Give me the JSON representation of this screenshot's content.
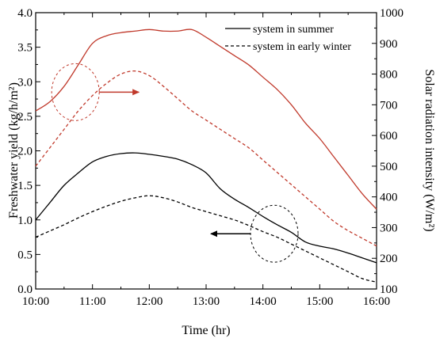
{
  "chart_data": {
    "type": "line",
    "x_ticks": [
      "10:00",
      "11:00",
      "12:00",
      "13:00",
      "14:00",
      "15:00",
      "16:00"
    ],
    "xlabel": "Time (hr)",
    "ylabel_left": "Freshwater yield (kg/h/m²)",
    "ylabel_right": "Solar radiation intensity (W/m²)",
    "y_left_lim": [
      0.0,
      4.0
    ],
    "y_left_ticks": [
      "0.0",
      "0.5",
      "1.0",
      "1.5",
      "2.0",
      "2.5",
      "3.0",
      "3.5",
      "4.0"
    ],
    "y_right_lim": [
      100,
      1000
    ],
    "y_right_ticks": [
      "100",
      "200",
      "300",
      "400",
      "500",
      "600",
      "700",
      "800",
      "900",
      "1000"
    ],
    "legend": [
      {
        "label": "system in summer",
        "style": "solid"
      },
      {
        "label": "system in early winter",
        "style": "dashed"
      }
    ],
    "colors": {
      "freshwater": "#000000",
      "radiation": "#c0392b"
    },
    "series": [
      {
        "name": "system in summer",
        "axis": "left",
        "style": "solid",
        "color": "#000000",
        "x": [
          10.0,
          10.25,
          10.5,
          10.75,
          11.0,
          11.25,
          11.5,
          11.75,
          12.0,
          12.25,
          12.5,
          12.75,
          13.0,
          13.25,
          13.5,
          13.75,
          14.0,
          14.25,
          14.5,
          14.75,
          15.0,
          15.25,
          15.5,
          15.75,
          16.0
        ],
        "y": [
          1.0,
          1.25,
          1.5,
          1.68,
          1.84,
          1.92,
          1.96,
          1.97,
          1.95,
          1.92,
          1.88,
          1.8,
          1.68,
          1.45,
          1.3,
          1.18,
          1.05,
          0.93,
          0.82,
          0.68,
          0.62,
          0.58,
          0.52,
          0.45,
          0.38
        ]
      },
      {
        "name": "system in early winter",
        "axis": "left",
        "style": "dashed",
        "color": "#000000",
        "x": [
          10.0,
          10.25,
          10.5,
          10.75,
          11.0,
          11.25,
          11.5,
          11.75,
          12.0,
          12.25,
          12.5,
          12.75,
          13.0,
          13.25,
          13.5,
          13.75,
          14.0,
          14.25,
          14.5,
          14.75,
          15.0,
          15.25,
          15.5,
          15.75,
          16.0
        ],
        "y": [
          0.75,
          0.84,
          0.93,
          1.03,
          1.12,
          1.2,
          1.27,
          1.32,
          1.35,
          1.32,
          1.26,
          1.18,
          1.12,
          1.06,
          1.0,
          0.92,
          0.83,
          0.75,
          0.65,
          0.55,
          0.45,
          0.35,
          0.25,
          0.15,
          0.1
        ]
      },
      {
        "name": "solar radiation, summer",
        "axis": "right",
        "style": "solid",
        "color": "#c0392b",
        "x": [
          10.0,
          10.25,
          10.5,
          10.75,
          11.0,
          11.25,
          11.5,
          11.75,
          12.0,
          12.25,
          12.5,
          12.75,
          13.0,
          13.25,
          13.5,
          13.75,
          14.0,
          14.25,
          14.5,
          14.75,
          15.0,
          15.25,
          15.5,
          15.75,
          16.0
        ],
        "y": [
          680,
          710,
          760,
          830,
          900,
          925,
          935,
          940,
          945,
          940,
          940,
          945,
          920,
          890,
          860,
          830,
          790,
          750,
          700,
          640,
          590,
          530,
          470,
          410,
          360
        ]
      },
      {
        "name": "solar radiation, early winter",
        "axis": "right",
        "style": "dashed",
        "color": "#c0392b",
        "x": [
          10.0,
          10.25,
          10.5,
          10.75,
          11.0,
          11.25,
          11.5,
          11.75,
          12.0,
          12.25,
          12.5,
          12.75,
          13.0,
          13.25,
          13.5,
          13.75,
          14.0,
          14.25,
          14.5,
          14.75,
          15.0,
          15.25,
          15.5,
          15.75,
          16.0
        ],
        "y": [
          500,
          560,
          620,
          680,
          730,
          770,
          800,
          810,
          795,
          760,
          720,
          680,
          650,
          620,
          590,
          560,
          520,
          480,
          440,
          400,
          360,
          320,
          290,
          265,
          240
        ]
      }
    ],
    "annotations": [
      {
        "type": "ellipse-arrow",
        "target_axis": "right",
        "center": [
          10.7,
          2.85
        ],
        "arrow_to": "right"
      },
      {
        "type": "ellipse-arrow",
        "target_axis": "left",
        "center": [
          14.2,
          0.8
        ],
        "arrow_to": "left"
      }
    ],
    "grid": false
  }
}
